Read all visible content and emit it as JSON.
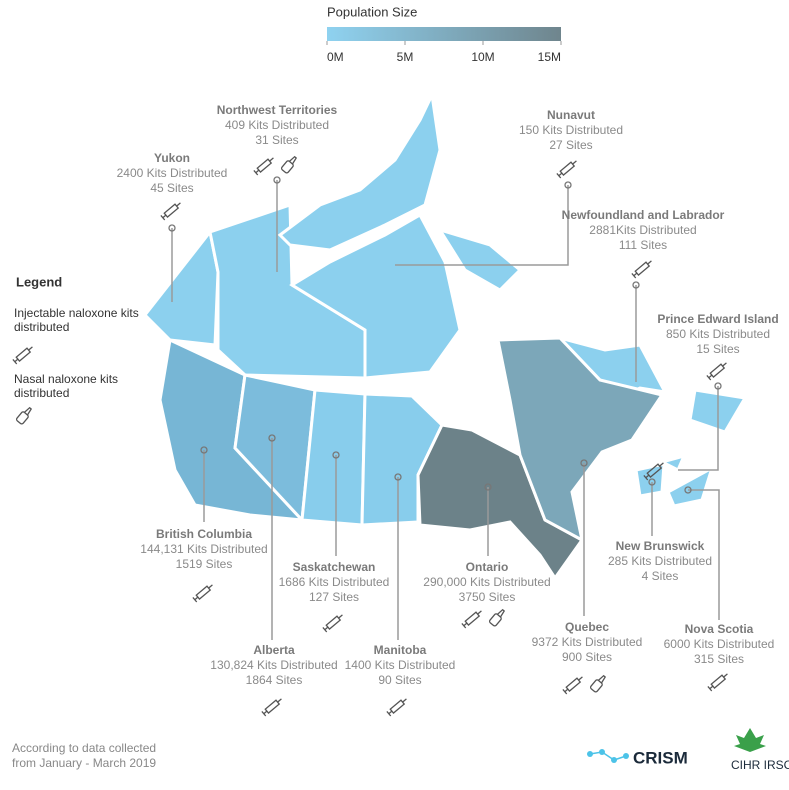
{
  "scale": {
    "title": "Population Size",
    "range": [
      0,
      15
    ],
    "colors": [
      "#8fd2f0",
      "#6f858d"
    ],
    "ticks": [
      {
        "value": 0,
        "label": "0M"
      },
      {
        "value": 5,
        "label": "5M"
      },
      {
        "value": 10,
        "label": "10M"
      },
      {
        "value": 15,
        "label": "15M"
      }
    ]
  },
  "legend": {
    "title": "Legend",
    "injectable": "Injectable naloxone kits distributed",
    "nasal": "Nasal naloxone kits distributed"
  },
  "provinces": [
    {
      "name": "Yukon",
      "kits": "2400 Kits Distributed",
      "sites": "45 Sites",
      "color": "#8cd0ee",
      "nasal": false
    },
    {
      "name": "Northwest Territories",
      "kits": "409 Kits Distributed",
      "sites": "31 Sites",
      "color": "#8cd0ee",
      "nasal": true
    },
    {
      "name": "Nunavut",
      "kits": "150 Kits Distributed",
      "sites": "27 Sites",
      "color": "#8cd0ee",
      "nasal": false
    },
    {
      "name": "Newfoundland and Labrador",
      "kits": "2881Kits Distributed",
      "sites": "111 Sites",
      "color": "#8cd0ee",
      "nasal": false
    },
    {
      "name": "Prince Edward Island",
      "kits": "850 Kits Distributed",
      "sites": "15 Sites",
      "color": "#8cd0ee",
      "nasal": false
    },
    {
      "name": "British Columbia",
      "kits": "144,131 Kits Distributed",
      "sites": "1519 Sites",
      "color": "#77b6d5",
      "nasal": false
    },
    {
      "name": "Alberta",
      "kits": "130,824 Kits Distributed",
      "sites": "1864 Sites",
      "color": "#7cbcdc",
      "nasal": false
    },
    {
      "name": "Saskatchewan",
      "kits": "1686 Kits Distributed",
      "sites": "127 Sites",
      "color": "#88cdec",
      "nasal": false
    },
    {
      "name": "Manitoba",
      "kits": "1400 Kits Distributed",
      "sites": "90 Sites",
      "color": "#88cdec",
      "nasal": false
    },
    {
      "name": "Ontario",
      "kits": "290,000 Kits Distributed",
      "sites": "3750 Sites",
      "color": "#6c8289",
      "nasal": true
    },
    {
      "name": "Quebec",
      "kits": "9372 Kits Distributed",
      "sites": "900 Sites",
      "color": "#7ca7b9",
      "nasal": true
    },
    {
      "name": "New Brunswick",
      "kits": "285 Kits Distributed",
      "sites": "4 Sites",
      "color": "#8cd0ee",
      "nasal": false
    },
    {
      "name": "Nova Scotia",
      "kits": "6000 Kits Distributed",
      "sites": "315 Sites",
      "color": "#8cd0ee",
      "nasal": false
    }
  ],
  "footer": {
    "note": [
      "According to data collected",
      "from January - March 2019"
    ],
    "crism": "CRISM",
    "cihr": "CIHR IRSC"
  }
}
